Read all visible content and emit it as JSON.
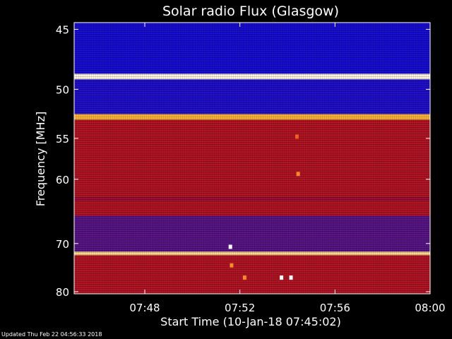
{
  "chart_data": {
    "type": "heatmap",
    "title": "Solar radio Flux (Glasgow)",
    "xlabel": "Start Time (10-Jan-18 07:45:02)",
    "ylabel": "Frequency [MHz]",
    "x_ticks": [
      "07:48",
      "07:52",
      "07:56",
      "08:00"
    ],
    "y_ticks": [
      "45",
      "50",
      "55",
      "60",
      "70",
      "80"
    ],
    "y_tick_values": [
      45,
      50,
      55,
      60,
      70,
      80
    ],
    "y_scale": "inverse-frequency",
    "x_range_min": [
      45.03,
      60
    ],
    "y_range_mhz": [
      44.5,
      80.5
    ],
    "colormap": "blue-red-yellow-white",
    "bands_mhz": [
      {
        "from": 44.5,
        "to": 48.6,
        "level": 0.12
      },
      {
        "from": 48.6,
        "to": 49.1,
        "level": 0.98
      },
      {
        "from": 49.1,
        "to": 52.4,
        "level": 0.14
      },
      {
        "from": 52.4,
        "to": 53.0,
        "level": 0.85
      },
      {
        "from": 53.0,
        "to": 62.5,
        "level": 0.5
      },
      {
        "from": 62.5,
        "to": 63.0,
        "level": 0.42
      },
      {
        "from": 63.0,
        "to": 65.3,
        "level": 0.5
      },
      {
        "from": 65.3,
        "to": 71.5,
        "level": 0.28
      },
      {
        "from": 71.5,
        "to": 72.2,
        "level": 0.92
      },
      {
        "from": 72.2,
        "to": 80.5,
        "level": 0.5
      }
    ],
    "events": [
      {
        "time_min": 51.6,
        "mhz": 70.6,
        "level": 1.0
      },
      {
        "time_min": 51.65,
        "mhz": 74.2,
        "level": 0.8
      },
      {
        "time_min": 52.2,
        "mhz": 76.8,
        "level": 0.8
      },
      {
        "time_min": 53.75,
        "mhz": 76.8,
        "level": 1.0
      },
      {
        "time_min": 54.15,
        "mhz": 76.8,
        "level": 1.0
      },
      {
        "time_min": 54.4,
        "mhz": 54.8,
        "level": 0.75
      },
      {
        "time_min": 54.45,
        "mhz": 59.3,
        "level": 0.8
      }
    ]
  },
  "footer": {
    "updated": "Updated Thu Feb 22 04:56:33 2018"
  },
  "colors": {
    "background": "#000000",
    "axes": "#ffffff"
  }
}
